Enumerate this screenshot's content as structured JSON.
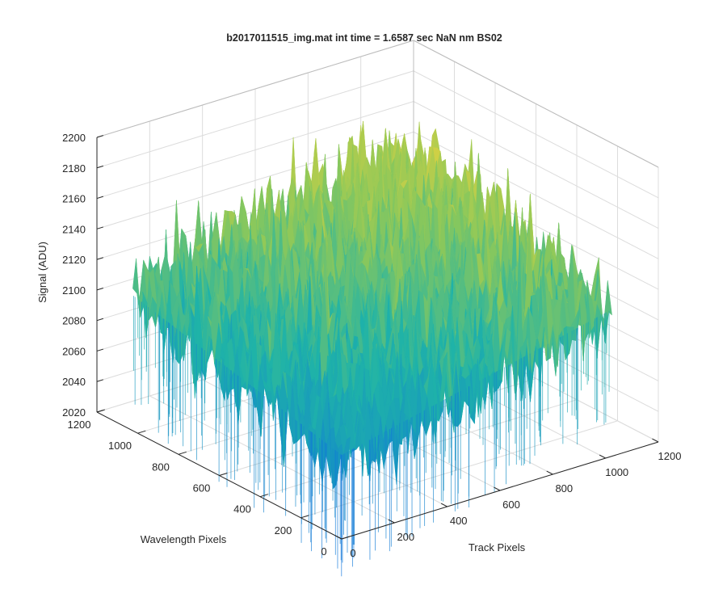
{
  "chart_data": {
    "type": "surface",
    "title": "b2017011515_img.mat int time = 1.6587 sec  NaN nm BS02",
    "xlabel": "Track Pixels",
    "ylabel": "Wavelength Pixels",
    "zlabel": "Signal (ADU)",
    "xlim": [
      0,
      1200
    ],
    "ylim": [
      0,
      1200
    ],
    "zlim": [
      2020,
      2200
    ],
    "x_ticks": [
      "0",
      "200",
      "400",
      "600",
      "800",
      "1000",
      "1200"
    ],
    "y_ticks": [
      "0",
      "200",
      "400",
      "600",
      "800",
      "1000",
      "1200"
    ],
    "z_ticks": [
      "2020",
      "2040",
      "2060",
      "2080",
      "2100",
      "2120",
      "2140",
      "2160",
      "2180",
      "2200"
    ],
    "grid": true,
    "colormap": "parula",
    "surface": {
      "mean_level": 2100,
      "low_corner_level": 2075,
      "high_corner_level": 2150,
      "noise_range": [
        2030,
        2180
      ],
      "extent": {
        "x": [
          0,
          1024
        ],
        "y": [
          0,
          1024
        ]
      }
    },
    "colors": {
      "low": "#0d6fe0",
      "mid": "#1fb3a8",
      "high": "#f3d43a",
      "axis": "#262626",
      "grid": "#dcdcdc"
    }
  }
}
